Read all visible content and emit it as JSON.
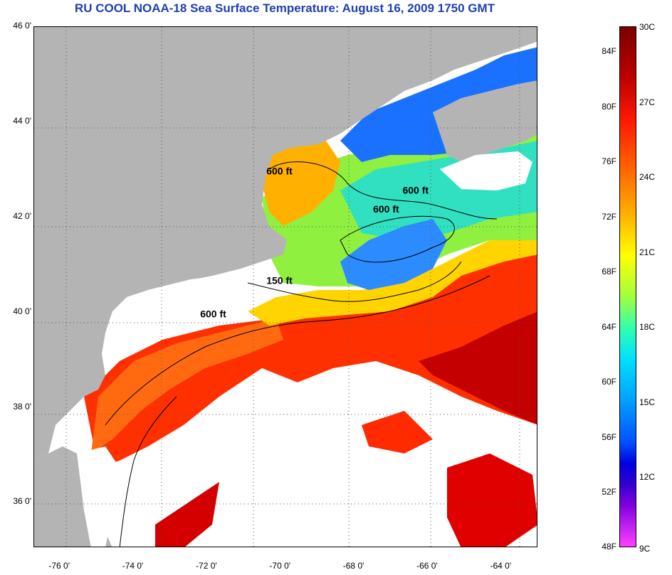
{
  "title": "RU COOL  NOAA-18  Sea Surface Temperature:  August 16, 2009 1750 GMT",
  "lat_ticks": [
    {
      "label": "46 0'",
      "value": 46
    },
    {
      "label": "44 0'",
      "value": 44
    },
    {
      "label": "42 0'",
      "value": 42
    },
    {
      "label": "40 0'",
      "value": 40
    },
    {
      "label": "38 0'",
      "value": 38
    },
    {
      "label": "36 0'",
      "value": 36
    }
  ],
  "lon_ticks": [
    {
      "label": "-76 0'",
      "value": -76
    },
    {
      "label": "-74 0'",
      "value": -74
    },
    {
      "label": "-72 0'",
      "value": -72
    },
    {
      "label": "-70 0'",
      "value": -70
    },
    {
      "label": "-68 0'",
      "value": -68
    },
    {
      "label": "-66 0'",
      "value": -66
    },
    {
      "label": "-64 0'",
      "value": -64
    }
  ],
  "contour_labels": [
    {
      "text": "600 ft",
      "lon": -70.0,
      "lat": 42.9
    },
    {
      "text": "600 ft",
      "lon": -66.3,
      "lat": 42.5
    },
    {
      "text": "600 ft",
      "lon": -67.1,
      "lat": 42.1
    },
    {
      "text": "150 ft",
      "lon": -70.0,
      "lat": 40.6
    },
    {
      "text": "600 ft",
      "lon": -71.8,
      "lat": 39.9
    }
  ],
  "colorbar": {
    "fahrenheit": [
      "84F",
      "80F",
      "76F",
      "72F",
      "68F",
      "64F",
      "60F",
      "56F",
      "52F",
      "48F"
    ],
    "celsius": [
      "30C",
      "27C",
      "24C",
      "21C",
      "18C",
      "15C",
      "12C",
      "9C"
    ]
  },
  "colors": {
    "land": "#b4b4b4",
    "cloud": "#ffffff",
    "title": "#1f3fae"
  }
}
